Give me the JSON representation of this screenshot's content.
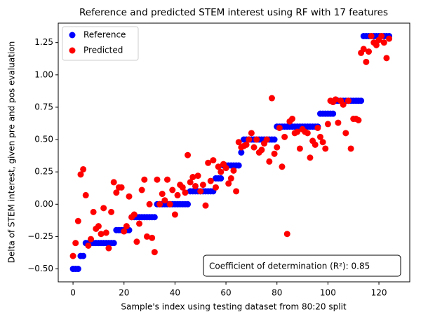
{
  "chart_data": {
    "type": "scatter",
    "title": "Reference and predicted STEM interest using RF with 17 features",
    "xlabel": "Sample's index using testing dataset from 80:20 split",
    "ylabel": "Delta of STEM interest, given pre and pos evaluation",
    "annotation": "Coefficient of determination (R²): 0.85",
    "legend": "upper left",
    "xlim": [
      -5.8,
      132.1
    ],
    "ylim": [
      -0.6,
      1.4
    ],
    "xticks": [
      0,
      20,
      40,
      60,
      80,
      100,
      120
    ],
    "yticks": [
      {
        "value": -0.5,
        "label": "−0.50"
      },
      {
        "value": -0.25,
        "label": "−0.25"
      },
      {
        "value": 0,
        "label": "0.00"
      },
      {
        "value": 0.25,
        "label": "0.25"
      },
      {
        "value": 0.5,
        "label": "0.50"
      },
      {
        "value": 0.75,
        "label": "0.75"
      },
      {
        "value": 1.0,
        "label": "1.00"
      },
      {
        "value": 1.25,
        "label": "1.25"
      }
    ],
    "x": [
      0,
      1,
      2,
      3,
      4,
      5,
      6,
      7,
      8,
      9,
      10,
      11,
      12,
      13,
      14,
      15,
      16,
      17,
      18,
      19,
      20,
      21,
      22,
      23,
      24,
      25,
      26,
      27,
      28,
      29,
      30,
      31,
      32,
      33,
      34,
      35,
      36,
      37,
      38,
      39,
      40,
      41,
      42,
      43,
      44,
      45,
      46,
      47,
      48,
      49,
      50,
      51,
      52,
      53,
      54,
      55,
      56,
      57,
      58,
      59,
      60,
      61,
      62,
      63,
      64,
      65,
      66,
      67,
      68,
      69,
      70,
      71,
      72,
      73,
      74,
      75,
      76,
      77,
      78,
      79,
      80,
      81,
      82,
      83,
      84,
      85,
      86,
      87,
      88,
      89,
      90,
      91,
      92,
      93,
      94,
      95,
      96,
      97,
      98,
      99,
      100,
      101,
      102,
      103,
      104,
      105,
      106,
      107,
      108,
      109,
      110,
      111,
      112,
      113,
      114,
      115,
      116,
      117,
      118,
      119,
      120,
      121,
      122,
      123,
      124
    ],
    "series": [
      {
        "name": "Reference",
        "color": "#0000ff",
        "values": [
          -0.5,
          -0.5,
          -0.5,
          -0.4,
          -0.4,
          -0.3,
          -0.3,
          -0.3,
          -0.3,
          -0.3,
          -0.3,
          -0.3,
          -0.3,
          -0.3,
          -0.3,
          -0.3,
          -0.3,
          -0.2,
          -0.2,
          -0.2,
          -0.2,
          -0.2,
          -0.2,
          -0.1,
          -0.1,
          -0.1,
          -0.1,
          -0.1,
          -0.1,
          -0.1,
          -0.1,
          -0.1,
          -0.1,
          0,
          0,
          0,
          0,
          0,
          0,
          0,
          0,
          0,
          0,
          0,
          0,
          0,
          0.1,
          0.1,
          0.1,
          0.1,
          0.1,
          0.1,
          0.1,
          0.1,
          0.1,
          0.1,
          0.2,
          0.2,
          0.2,
          0.3,
          0.3,
          0.3,
          0.3,
          0.3,
          0.3,
          0.3,
          0.4,
          0.5,
          0.5,
          0.5,
          0.5,
          0.5,
          0.5,
          0.5,
          0.5,
          0.5,
          0.5,
          0.5,
          0.5,
          0.5,
          0.6,
          0.6,
          0.6,
          0.6,
          0.6,
          0.6,
          0.6,
          0.6,
          0.6,
          0.6,
          0.6,
          0.6,
          0.6,
          0.6,
          0.6,
          0.6,
          0.6,
          0.7,
          0.7,
          0.7,
          0.7,
          0.7,
          0.7,
          0.8,
          0.8,
          0.8,
          0.8,
          0.8,
          0.8,
          0.8,
          0.8,
          0.8,
          0.8,
          0.8,
          1.3,
          1.3,
          1.3,
          1.3,
          1.3,
          1.3,
          1.3,
          1.3,
          1.3,
          1.3,
          1.3
        ]
      },
      {
        "name": "Predicted",
        "color": "#ff0000",
        "values": [
          -0.4,
          -0.3,
          -0.13,
          0.23,
          0.27,
          0.07,
          -0.32,
          -0.27,
          -0.06,
          -0.19,
          -0.17,
          -0.23,
          -0.03,
          -0.22,
          -0.34,
          -0.06,
          0.17,
          0.09,
          0.13,
          0.13,
          -0.21,
          -0.17,
          0.06,
          -0.1,
          -0.08,
          -0.29,
          -0.15,
          0.11,
          0.19,
          -0.25,
          0.0,
          -0.26,
          -0.37,
          0.19,
          0.0,
          0.08,
          0.03,
          0.19,
          0.0,
          0.11,
          -0.08,
          0.07,
          0.15,
          0.13,
          0.09,
          0.38,
          0.17,
          0.21,
          0.14,
          0.22,
          0.1,
          0.15,
          -0.01,
          0.32,
          0.18,
          0.34,
          0.13,
          0.29,
          0.25,
          0.31,
          0.28,
          0.16,
          0.2,
          0.26,
          0.1,
          0.48,
          0.44,
          0.45,
          0.46,
          0.5,
          0.55,
          0.44,
          0.5,
          0.4,
          0.42,
          0.47,
          0.5,
          0.33,
          0.82,
          0.39,
          0.44,
          0.59,
          0.29,
          0.52,
          -0.23,
          0.64,
          0.66,
          0.55,
          0.56,
          0.43,
          0.58,
          0.56,
          0.55,
          0.36,
          0.49,
          0.46,
          0.59,
          0.52,
          0.48,
          0.43,
          0.62,
          0.8,
          0.79,
          0.81,
          0.63,
          0.8,
          0.77,
          0.55,
          0.8,
          0.43,
          0.66,
          0.66,
          0.65,
          1.17,
          1.2,
          1.1,
          1.18,
          1.3,
          1.25,
          1.23,
          1.27,
          1.3,
          1.25,
          1.13,
          1.28
        ]
      }
    ]
  }
}
